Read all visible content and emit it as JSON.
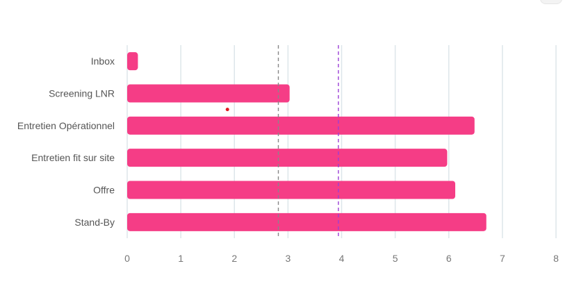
{
  "chart_data": {
    "type": "bar",
    "orientation": "horizontal",
    "categories": [
      "Inbox",
      "Screening LNR",
      "Entretien Opérationnel",
      "Entretien fit sur site",
      "Offre",
      "Stand-By"
    ],
    "values": [
      0.2,
      3.03,
      6.48,
      5.97,
      6.12,
      6.7
    ],
    "xlim": [
      0,
      8
    ],
    "xticks": [
      "0",
      "1",
      "2",
      "3",
      "4",
      "5",
      "6",
      "7",
      "8"
    ],
    "grid": "vertical",
    "reference_lines": [
      {
        "value": 2.82,
        "color": "#888888",
        "style": "dashed"
      },
      {
        "value": 3.94,
        "color": "#9b3fd6",
        "style": "dashed"
      }
    ],
    "marker": {
      "x": 1.87,
      "between": [
        "Screening LNR",
        "Entretien Opérationnel"
      ],
      "color": "#e0191f"
    },
    "bar_color": "#f53d86",
    "grid_color": "#dde6ea"
  }
}
